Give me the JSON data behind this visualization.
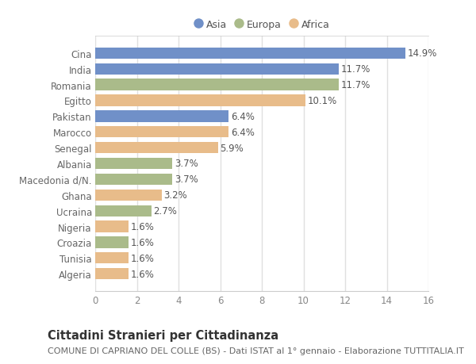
{
  "categories": [
    "Cina",
    "India",
    "Romania",
    "Egitto",
    "Pakistan",
    "Marocco",
    "Senegal",
    "Albania",
    "Macedonia d/N.",
    "Ghana",
    "Ucraina",
    "Nigeria",
    "Croazia",
    "Tunisia",
    "Algeria"
  ],
  "values": [
    14.9,
    11.7,
    11.7,
    10.1,
    6.4,
    6.4,
    5.9,
    3.7,
    3.7,
    3.2,
    2.7,
    1.6,
    1.6,
    1.6,
    1.6
  ],
  "continents": [
    "Asia",
    "Asia",
    "Europa",
    "Africa",
    "Asia",
    "Africa",
    "Africa",
    "Europa",
    "Europa",
    "Africa",
    "Europa",
    "Africa",
    "Europa",
    "Africa",
    "Africa"
  ],
  "colors": {
    "Asia": "#7090c8",
    "Europa": "#aabb8a",
    "Africa": "#e8bc8a"
  },
  "legend_order": [
    "Asia",
    "Europa",
    "Africa"
  ],
  "xlim": [
    0,
    16
  ],
  "xticks": [
    0,
    2,
    4,
    6,
    8,
    10,
    12,
    14,
    16
  ],
  "title": "Cittadini Stranieri per Cittadinanza",
  "subtitle": "COMUNE DI CAPRIANO DEL COLLE (BS) - Dati ISTAT al 1° gennaio - Elaborazione TUTTITALIA.IT",
  "background_color": "#ffffff",
  "plot_bg_color": "#ffffff",
  "bar_height": 0.72,
  "value_fontsize": 8.5,
  "label_fontsize": 8.5,
  "title_fontsize": 10.5,
  "subtitle_fontsize": 8.0,
  "grid_color": "#e0e0e0"
}
